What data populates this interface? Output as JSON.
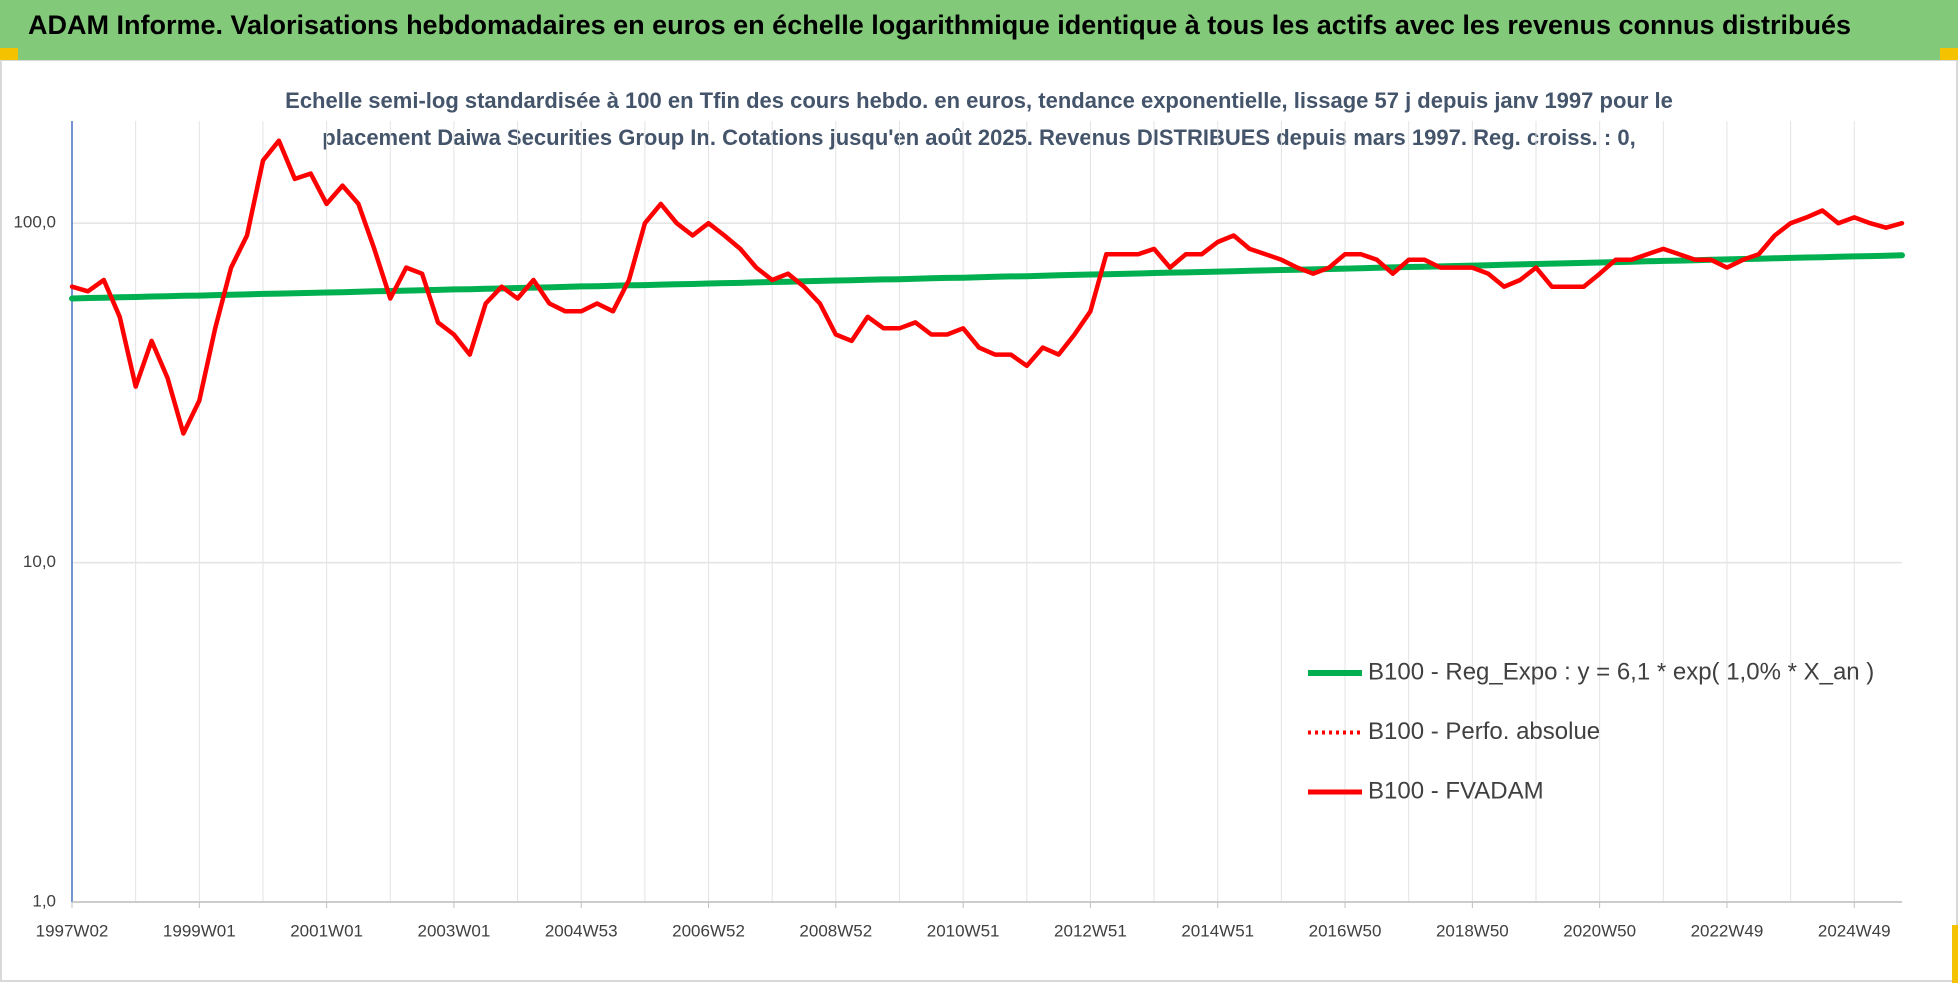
{
  "chart_data": {
    "type": "line",
    "title": "ADAM Informe. Valorisations hebdomadaires en euros en échelle logarithmique identique à tous les actifs avec les revenus connus distribués",
    "subtitle": [
      "Echelle semi-log standardisée à 100 en Tfin des cours hebdo. en euros, tendance exponentielle, lissage 57 j depuis janv 1997 pour le",
      "placement Daiwa Securities Group In. Cotations jusqu'en août 2025. Revenus DISTRIBUES depuis mars 1997. Reg. croiss. : 0,"
    ],
    "categories": [
      "1997W02",
      null,
      null,
      null,
      null,
      null,
      null,
      null,
      "1999W01",
      null,
      null,
      null,
      null,
      null,
      null,
      null,
      "2001W01",
      null,
      null,
      null,
      null,
      null,
      null,
      null,
      "2003W01",
      null,
      null,
      null,
      null,
      null,
      null,
      null,
      "2004W53",
      null,
      null,
      null,
      null,
      null,
      null,
      null,
      "2006W52",
      null,
      null,
      null,
      null,
      null,
      null,
      null,
      "2008W52",
      null,
      null,
      null,
      null,
      null,
      null,
      null,
      "2010W51",
      null,
      null,
      null,
      null,
      null,
      null,
      null,
      "2012W51",
      null,
      null,
      null,
      null,
      null,
      null,
      null,
      "2014W51",
      null,
      null,
      null,
      null,
      null,
      null,
      null,
      "2016W50",
      null,
      null,
      null,
      null,
      null,
      null,
      null,
      "2018W50",
      null,
      null,
      null,
      null,
      null,
      null,
      null,
      "2020W50",
      null,
      null,
      null,
      null,
      null,
      null,
      null,
      "2022W49",
      null,
      null,
      null,
      null,
      null,
      null,
      null,
      "2024W49",
      null,
      null,
      null
    ],
    "log_scale": true,
    "ylim": [
      1,
      200
    ],
    "yticks": [
      {
        "value": 1,
        "label": "1,0"
      },
      {
        "value": 10,
        "label": "10,0"
      },
      {
        "value": 100,
        "label": "100,0"
      }
    ],
    "grid": true,
    "legend": "right",
    "series": [
      {
        "name": "B100 - Reg_Expo : y = 6,1 * exp( 1,0% *  X_an )",
        "color": "#00b050",
        "values": [
          60.0,
          60.2,
          60.3,
          60.5,
          60.6,
          60.8,
          60.9,
          61.1,
          61.2,
          61.4,
          61.5,
          61.7,
          61.9,
          62.0,
          62.2,
          62.3,
          62.5,
          62.6,
          62.8,
          63.0,
          63.1,
          63.3,
          63.4,
          63.6,
          63.8,
          63.9,
          64.1,
          64.2,
          64.4,
          64.6,
          64.7,
          64.9,
          65.1,
          65.2,
          65.4,
          65.6,
          65.7,
          65.9,
          66.1,
          66.2,
          66.4,
          66.6,
          66.7,
          66.9,
          67.1,
          67.2,
          67.4,
          67.6,
          67.8,
          67.9,
          68.1,
          68.3,
          68.4,
          68.6,
          68.8,
          69.0,
          69.1,
          69.3,
          69.5,
          69.7,
          69.8,
          70.0,
          70.2,
          70.4,
          70.6,
          70.7,
          70.9,
          71.1,
          71.3,
          71.5,
          71.6,
          71.8,
          72.0,
          72.2,
          72.4,
          72.6,
          72.8,
          72.9,
          73.1,
          73.3,
          73.5,
          73.7,
          73.9,
          74.1,
          74.3,
          74.4,
          74.6,
          74.8,
          75.0,
          75.2,
          75.4,
          75.6,
          75.8,
          76.0,
          76.2,
          76.4,
          76.6,
          76.8,
          77.0,
          77.2,
          77.4,
          77.6,
          77.8,
          78.0,
          78.2,
          78.4,
          78.6,
          78.8,
          79.0,
          79.2,
          79.4,
          79.6,
          79.8,
          80.0,
          80.2,
          80.4
        ]
      },
      {
        "name": "B100 - Perfo. absolue",
        "color": "#ff0000",
        "dash": true
      },
      {
        "name": "B100 - FVADAM",
        "color": "#ff0000",
        "values": [
          65,
          63,
          68,
          53,
          33,
          45,
          35,
          24,
          30,
          49,
          74,
          92,
          153,
          175,
          135,
          140,
          114,
          129,
          114,
          84,
          60,
          74,
          71,
          51,
          47,
          41,
          58,
          65,
          60,
          68,
          58,
          55,
          55,
          58,
          55,
          68,
          100,
          114,
          100,
          92,
          100,
          92,
          84,
          74,
          68,
          71,
          65,
          58,
          47,
          45,
          53,
          49,
          49,
          51,
          47,
          47,
          49,
          43,
          41,
          41,
          38,
          43,
          41,
          47,
          55,
          81,
          81,
          81,
          84,
          74,
          81,
          81,
          88,
          92,
          84,
          81,
          78,
          74,
          71,
          74,
          81,
          81,
          78,
          71,
          78,
          78,
          74,
          74,
          74,
          71,
          65,
          68,
          74,
          65,
          65,
          65,
          71,
          78,
          78,
          81,
          84,
          81,
          78,
          78,
          74,
          78,
          81,
          92,
          100,
          104,
          109,
          100,
          104,
          100,
          97,
          100
        ]
      }
    ]
  }
}
